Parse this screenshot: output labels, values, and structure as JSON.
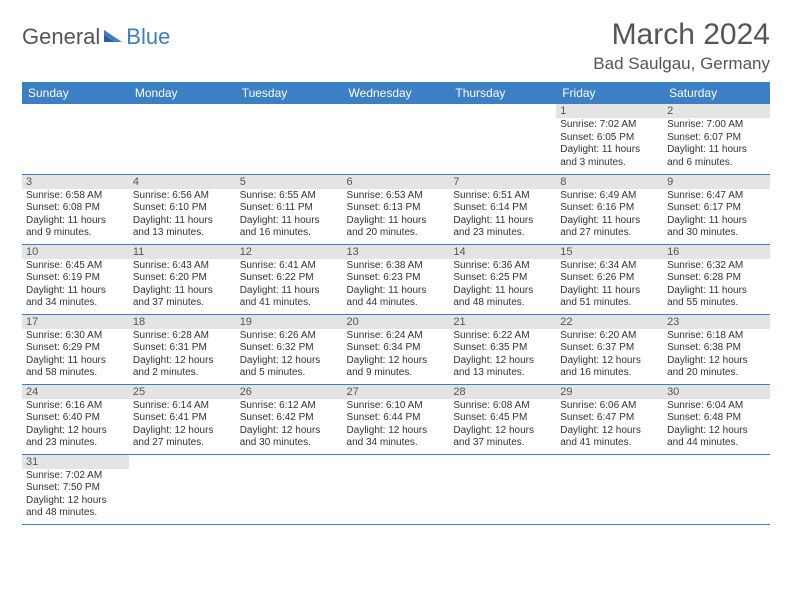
{
  "logo": {
    "general": "General",
    "blue": "Blue"
  },
  "title": "March 2024",
  "location": "Bad Saulgau, Germany",
  "colors": {
    "header_bg": "#3b7fc4",
    "header_fg": "#ffffff",
    "daynum_bg": "#e4e4e4",
    "text": "#333333",
    "title_color": "#555555",
    "border": "#3b7fc4",
    "background": "#ffffff"
  },
  "typography": {
    "title_fontsize": 30,
    "location_fontsize": 17,
    "header_fontsize": 12,
    "daynum_fontsize": 11,
    "cell_fontsize": 10
  },
  "calendar": {
    "type": "calendar-table",
    "columns": [
      "Sunday",
      "Monday",
      "Tuesday",
      "Wednesday",
      "Thursday",
      "Friday",
      "Saturday"
    ],
    "weeks": [
      [
        null,
        null,
        null,
        null,
        null,
        {
          "day": "1",
          "sunrise": "Sunrise: 7:02 AM",
          "sunset": "Sunset: 6:05 PM",
          "daylight1": "Daylight: 11 hours",
          "daylight2": "and 3 minutes."
        },
        {
          "day": "2",
          "sunrise": "Sunrise: 7:00 AM",
          "sunset": "Sunset: 6:07 PM",
          "daylight1": "Daylight: 11 hours",
          "daylight2": "and 6 minutes."
        }
      ],
      [
        {
          "day": "3",
          "sunrise": "Sunrise: 6:58 AM",
          "sunset": "Sunset: 6:08 PM",
          "daylight1": "Daylight: 11 hours",
          "daylight2": "and 9 minutes."
        },
        {
          "day": "4",
          "sunrise": "Sunrise: 6:56 AM",
          "sunset": "Sunset: 6:10 PM",
          "daylight1": "Daylight: 11 hours",
          "daylight2": "and 13 minutes."
        },
        {
          "day": "5",
          "sunrise": "Sunrise: 6:55 AM",
          "sunset": "Sunset: 6:11 PM",
          "daylight1": "Daylight: 11 hours",
          "daylight2": "and 16 minutes."
        },
        {
          "day": "6",
          "sunrise": "Sunrise: 6:53 AM",
          "sunset": "Sunset: 6:13 PM",
          "daylight1": "Daylight: 11 hours",
          "daylight2": "and 20 minutes."
        },
        {
          "day": "7",
          "sunrise": "Sunrise: 6:51 AM",
          "sunset": "Sunset: 6:14 PM",
          "daylight1": "Daylight: 11 hours",
          "daylight2": "and 23 minutes."
        },
        {
          "day": "8",
          "sunrise": "Sunrise: 6:49 AM",
          "sunset": "Sunset: 6:16 PM",
          "daylight1": "Daylight: 11 hours",
          "daylight2": "and 27 minutes."
        },
        {
          "day": "9",
          "sunrise": "Sunrise: 6:47 AM",
          "sunset": "Sunset: 6:17 PM",
          "daylight1": "Daylight: 11 hours",
          "daylight2": "and 30 minutes."
        }
      ],
      [
        {
          "day": "10",
          "sunrise": "Sunrise: 6:45 AM",
          "sunset": "Sunset: 6:19 PM",
          "daylight1": "Daylight: 11 hours",
          "daylight2": "and 34 minutes."
        },
        {
          "day": "11",
          "sunrise": "Sunrise: 6:43 AM",
          "sunset": "Sunset: 6:20 PM",
          "daylight1": "Daylight: 11 hours",
          "daylight2": "and 37 minutes."
        },
        {
          "day": "12",
          "sunrise": "Sunrise: 6:41 AM",
          "sunset": "Sunset: 6:22 PM",
          "daylight1": "Daylight: 11 hours",
          "daylight2": "and 41 minutes."
        },
        {
          "day": "13",
          "sunrise": "Sunrise: 6:38 AM",
          "sunset": "Sunset: 6:23 PM",
          "daylight1": "Daylight: 11 hours",
          "daylight2": "and 44 minutes."
        },
        {
          "day": "14",
          "sunrise": "Sunrise: 6:36 AM",
          "sunset": "Sunset: 6:25 PM",
          "daylight1": "Daylight: 11 hours",
          "daylight2": "and 48 minutes."
        },
        {
          "day": "15",
          "sunrise": "Sunrise: 6:34 AM",
          "sunset": "Sunset: 6:26 PM",
          "daylight1": "Daylight: 11 hours",
          "daylight2": "and 51 minutes."
        },
        {
          "day": "16",
          "sunrise": "Sunrise: 6:32 AM",
          "sunset": "Sunset: 6:28 PM",
          "daylight1": "Daylight: 11 hours",
          "daylight2": "and 55 minutes."
        }
      ],
      [
        {
          "day": "17",
          "sunrise": "Sunrise: 6:30 AM",
          "sunset": "Sunset: 6:29 PM",
          "daylight1": "Daylight: 11 hours",
          "daylight2": "and 58 minutes."
        },
        {
          "day": "18",
          "sunrise": "Sunrise: 6:28 AM",
          "sunset": "Sunset: 6:31 PM",
          "daylight1": "Daylight: 12 hours",
          "daylight2": "and 2 minutes."
        },
        {
          "day": "19",
          "sunrise": "Sunrise: 6:26 AM",
          "sunset": "Sunset: 6:32 PM",
          "daylight1": "Daylight: 12 hours",
          "daylight2": "and 5 minutes."
        },
        {
          "day": "20",
          "sunrise": "Sunrise: 6:24 AM",
          "sunset": "Sunset: 6:34 PM",
          "daylight1": "Daylight: 12 hours",
          "daylight2": "and 9 minutes."
        },
        {
          "day": "21",
          "sunrise": "Sunrise: 6:22 AM",
          "sunset": "Sunset: 6:35 PM",
          "daylight1": "Daylight: 12 hours",
          "daylight2": "and 13 minutes."
        },
        {
          "day": "22",
          "sunrise": "Sunrise: 6:20 AM",
          "sunset": "Sunset: 6:37 PM",
          "daylight1": "Daylight: 12 hours",
          "daylight2": "and 16 minutes."
        },
        {
          "day": "23",
          "sunrise": "Sunrise: 6:18 AM",
          "sunset": "Sunset: 6:38 PM",
          "daylight1": "Daylight: 12 hours",
          "daylight2": "and 20 minutes."
        }
      ],
      [
        {
          "day": "24",
          "sunrise": "Sunrise: 6:16 AM",
          "sunset": "Sunset: 6:40 PM",
          "daylight1": "Daylight: 12 hours",
          "daylight2": "and 23 minutes."
        },
        {
          "day": "25",
          "sunrise": "Sunrise: 6:14 AM",
          "sunset": "Sunset: 6:41 PM",
          "daylight1": "Daylight: 12 hours",
          "daylight2": "and 27 minutes."
        },
        {
          "day": "26",
          "sunrise": "Sunrise: 6:12 AM",
          "sunset": "Sunset: 6:42 PM",
          "daylight1": "Daylight: 12 hours",
          "daylight2": "and 30 minutes."
        },
        {
          "day": "27",
          "sunrise": "Sunrise: 6:10 AM",
          "sunset": "Sunset: 6:44 PM",
          "daylight1": "Daylight: 12 hours",
          "daylight2": "and 34 minutes."
        },
        {
          "day": "28",
          "sunrise": "Sunrise: 6:08 AM",
          "sunset": "Sunset: 6:45 PM",
          "daylight1": "Daylight: 12 hours",
          "daylight2": "and 37 minutes."
        },
        {
          "day": "29",
          "sunrise": "Sunrise: 6:06 AM",
          "sunset": "Sunset: 6:47 PM",
          "daylight1": "Daylight: 12 hours",
          "daylight2": "and 41 minutes."
        },
        {
          "day": "30",
          "sunrise": "Sunrise: 6:04 AM",
          "sunset": "Sunset: 6:48 PM",
          "daylight1": "Daylight: 12 hours",
          "daylight2": "and 44 minutes."
        }
      ],
      [
        {
          "day": "31",
          "sunrise": "Sunrise: 7:02 AM",
          "sunset": "Sunset: 7:50 PM",
          "daylight1": "Daylight: 12 hours",
          "daylight2": "and 48 minutes."
        },
        null,
        null,
        null,
        null,
        null,
        null
      ]
    ]
  }
}
